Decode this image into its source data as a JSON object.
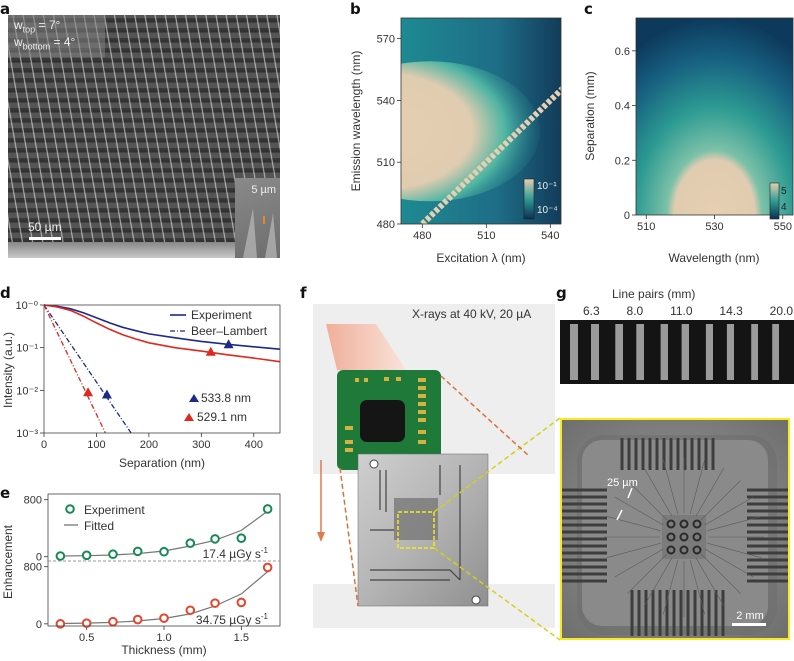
{
  "panels": {
    "a": {
      "label": "a",
      "w_top_symbol": "w",
      "w_top_sub": "top",
      "w_top_value": " = 7°",
      "w_bottom_symbol": "w",
      "w_bottom_sub": "bottom",
      "w_bottom_value": " = 4°",
      "scale_main": "50 µm",
      "scale_inset": "5 µm"
    },
    "b": {
      "label": "b"
    },
    "c": {
      "label": "c"
    },
    "d": {
      "label": "d"
    },
    "e": {
      "label": "e"
    },
    "f": {
      "label": "f",
      "xray_text": "X-rays at 40 kV, 20 µA"
    },
    "g": {
      "label": "g",
      "title": "Line pairs (mm)",
      "groups": [
        "6.3",
        "8.0",
        "11.0",
        "14.3",
        "20.0"
      ],
      "annotation": "25 µm",
      "scale": "2 mm"
    }
  },
  "colors": {
    "navy": "#1c2a8a",
    "red": "#e0281e",
    "green": "#168a55",
    "orange_red": "#e5452d",
    "fit_gray": "#777777",
    "heat_low": "#0b3656",
    "heat_mid": "#2e9c93",
    "heat_high": "#e6cfb2",
    "highlight_yellow": "#f6ec1a"
  },
  "chart_data": [
    {
      "id": "b",
      "type": "heatmap",
      "title": "",
      "xlabel": "Excitation λ (nm)",
      "ylabel": "Emission wavelength (nm)",
      "xlim": [
        470,
        545
      ],
      "ylim": [
        480,
        580
      ],
      "xticks": [
        480,
        510,
        540
      ],
      "yticks": [
        480,
        510,
        540,
        570
      ],
      "colorbar": {
        "ticks": [
          "10⁻¹",
          "10⁻⁴"
        ],
        "scale": "log"
      },
      "features": {
        "emission_band_center_nm": 525,
        "emission_band_halfwidth_nm": 14,
        "scatter_diagonal": "emission = excitation"
      }
    },
    {
      "id": "c",
      "type": "heatmap",
      "title": "",
      "xlabel": "Wavelength (nm)",
      "ylabel": "Separation (mm)",
      "xlim": [
        507,
        553
      ],
      "ylim": [
        0,
        0.72
      ],
      "xticks": [
        510,
        530,
        550
      ],
      "yticks": [
        0,
        0.2,
        0.4,
        0.6
      ],
      "colorbar": {
        "ticks": [
          "5",
          "4"
        ]
      },
      "features": {
        "peak_wavelength_nm": 530,
        "peak_separation_mm": 0
      }
    },
    {
      "id": "d",
      "type": "line",
      "title": "",
      "xlabel": "Separation (nm)",
      "ylabel": "Intensity (a.u.)",
      "xlim": [
        0,
        450
      ],
      "ylim_log10": [
        -3,
        0
      ],
      "xticks": [
        0,
        100,
        200,
        300,
        400
      ],
      "yticks": [
        "10⁻⁰",
        "10⁻¹",
        "10⁻²",
        "10⁻³"
      ],
      "legend": {
        "position": "top-right",
        "entries": [
          "Experiment",
          "Beer–Lambert"
        ]
      },
      "legend2": {
        "position": "lower-right",
        "entries": [
          "533.8 nm",
          "529.1 nm"
        ]
      },
      "series": [
        {
          "name": "Experiment 533.8 nm",
          "style": "solid",
          "color": "navy",
          "x": [
            0,
            25,
            50,
            75,
            100,
            125,
            150,
            175,
            200,
            250,
            300,
            350,
            400,
            450
          ],
          "y": [
            1.0,
            0.93,
            0.82,
            0.66,
            0.5,
            0.38,
            0.3,
            0.25,
            0.21,
            0.17,
            0.14,
            0.12,
            0.105,
            0.092
          ]
        },
        {
          "name": "Experiment 529.1 nm",
          "style": "solid",
          "color": "red",
          "x": [
            0,
            25,
            50,
            75,
            100,
            125,
            150,
            175,
            200,
            250,
            300,
            350,
            400,
            450
          ],
          "y": [
            1.0,
            0.9,
            0.75,
            0.55,
            0.38,
            0.27,
            0.2,
            0.16,
            0.13,
            0.1,
            0.083,
            0.068,
            0.057,
            0.047
          ]
        },
        {
          "name": "Beer–Lambert 533.8 nm",
          "style": "dashdot",
          "color": "navy",
          "x": [
            0,
            166
          ],
          "y": [
            1.0,
            0.001
          ]
        },
        {
          "name": "Beer–Lambert 529.1 nm",
          "style": "dashdot",
          "color": "red",
          "x": [
            0,
            117
          ],
          "y": [
            1.0,
            0.001
          ]
        }
      ],
      "markers": [
        {
          "series": "533.8 nm",
          "x": 352,
          "y": 0.12,
          "color": "navy"
        },
        {
          "series": "533.8 nm",
          "x": 120,
          "y": 0.008,
          "color": "navy"
        },
        {
          "series": "529.1 nm",
          "x": 318,
          "y": 0.08,
          "color": "red"
        },
        {
          "series": "529.1 nm",
          "x": 84,
          "y": 0.009,
          "color": "red"
        }
      ]
    },
    {
      "id": "e",
      "type": "scatter",
      "title": "",
      "xlabel": "Thickness (mm)",
      "ylabel": "Enhancement",
      "xlim": [
        0.25,
        1.75
      ],
      "xticks": [
        0.5,
        1.0,
        1.5
      ],
      "subplots": [
        {
          "name": "17.4 µGy s⁻¹",
          "label": "17.4 µGy s",
          "exp": "-1",
          "ylim": [
            -60,
            880
          ],
          "yticks": [
            0,
            800
          ],
          "color": "green",
          "x": [
            0.33,
            0.5,
            0.67,
            0.83,
            1.0,
            1.17,
            1.33,
            1.5,
            1.67
          ],
          "y": [
            10,
            20,
            35,
            75,
            70,
            190,
            250,
            260,
            670
          ],
          "fit_y": [
            10,
            14,
            24,
            44,
            80,
            150,
            230,
            370,
            640
          ]
        },
        {
          "name": "34.75 µGy s⁻¹",
          "label": "34.75 µGy s",
          "exp": "-1",
          "ylim": [
            -30,
            880
          ],
          "yticks": [
            0,
            800
          ],
          "color": "orange_red",
          "x": [
            0.33,
            0.5,
            0.67,
            0.83,
            1.0,
            1.17,
            1.33,
            1.5,
            1.67
          ],
          "y": [
            0,
            10,
            30,
            60,
            80,
            190,
            290,
            300,
            790
          ],
          "fit_y": [
            5,
            10,
            20,
            40,
            75,
            140,
            250,
            420,
            730
          ]
        }
      ],
      "legend": {
        "position": "top-left",
        "entries": [
          "Experiment",
          "Fitted"
        ]
      }
    }
  ]
}
